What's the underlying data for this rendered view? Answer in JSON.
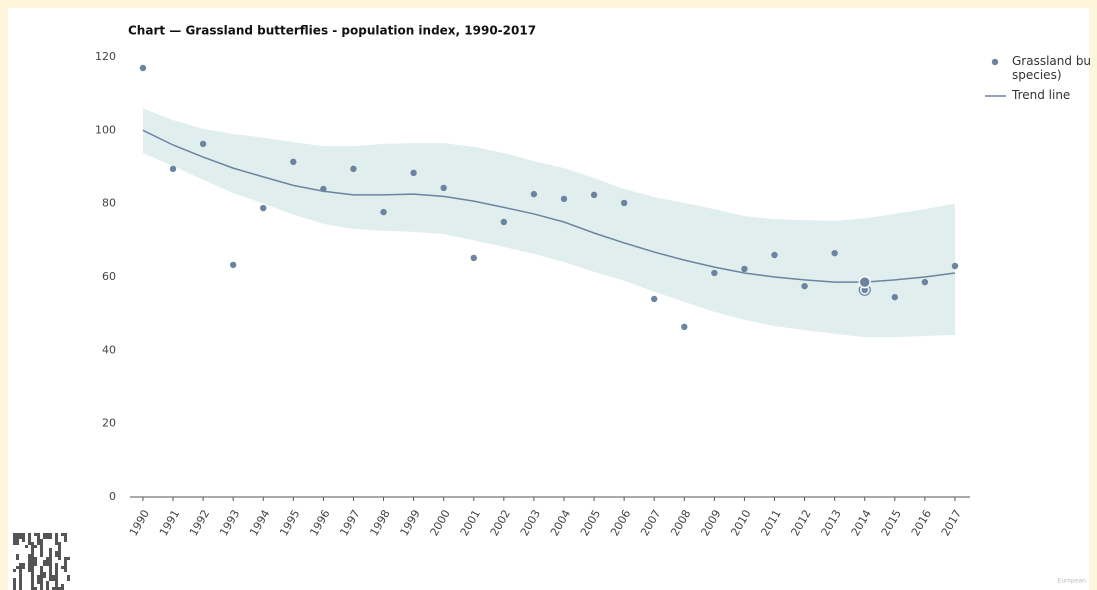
{
  "chart_data": {
    "type": "scatter",
    "title": "Chart — Grassland butterflies - population index, 1990-2017",
    "x": [
      1990,
      1991,
      1992,
      1993,
      1994,
      1995,
      1996,
      1997,
      1998,
      1999,
      2000,
      2001,
      2002,
      2003,
      2004,
      2005,
      2006,
      2007,
      2008,
      2009,
      2010,
      2011,
      2012,
      2013,
      2014,
      2015,
      2016,
      2017
    ],
    "series": [
      {
        "name": "Grassland bu species)",
        "color": "#6b84a0",
        "values": [
          117,
          89.5,
          96.3,
          63.3,
          78.8,
          91.4,
          84,
          89.5,
          77.7,
          88.4,
          84.3,
          65.2,
          75,
          82.6,
          81.3,
          82.4,
          80.2,
          54,
          46.4,
          61.1,
          62.2,
          66,
          57.5,
          66.5,
          56.5,
          54.5,
          58.6,
          63
        ]
      },
      {
        "name": "Trend line",
        "color": "#6b84a0",
        "line": true,
        "values": [
          100,
          96,
          92.7,
          89.7,
          87.3,
          85,
          83.4,
          82.4,
          82.4,
          82.6,
          82,
          80.7,
          79,
          77.2,
          75,
          72,
          69.3,
          66.8,
          64.6,
          62.7,
          61.1,
          60,
          59.2,
          58.6,
          58.6,
          59.2,
          60,
          61.1
        ]
      }
    ],
    "band": {
      "color": "#e0efee",
      "upper": [
        106,
        102.8,
        100.4,
        99,
        98,
        96.8,
        95.7,
        95.7,
        96.3,
        96.5,
        96.5,
        95.5,
        93.8,
        91.6,
        89.7,
        87,
        84,
        81.8,
        80.2,
        78.5,
        76.6,
        75.8,
        75.5,
        75.3,
        76,
        77.2,
        78.5,
        80
      ],
      "lower": [
        93.8,
        90.3,
        86.5,
        82.9,
        80,
        77,
        74.5,
        73.1,
        72.6,
        72.3,
        71.7,
        70,
        68.2,
        66.3,
        64.1,
        61.4,
        59,
        56,
        53.2,
        50.5,
        48.3,
        46.6,
        45.5,
        44.5,
        43.6,
        43.6,
        43.9,
        44.2
      ]
    },
    "xlim": [
      1989.57,
      2017.5
    ],
    "xticks": [
      1990,
      1991,
      1992,
      1993,
      1994,
      1995,
      1996,
      1997,
      1998,
      1999,
      2000,
      2001,
      2002,
      2003,
      2004,
      2005,
      2006,
      2007,
      2008,
      2009,
      2010,
      2011,
      2012,
      2013,
      2014,
      2015,
      2016,
      2017
    ],
    "ylim": [
      0,
      120
    ],
    "yticks": [
      0,
      20,
      40,
      60,
      80,
      100,
      120
    ],
    "highlight_index": 24,
    "footer": "European"
  }
}
